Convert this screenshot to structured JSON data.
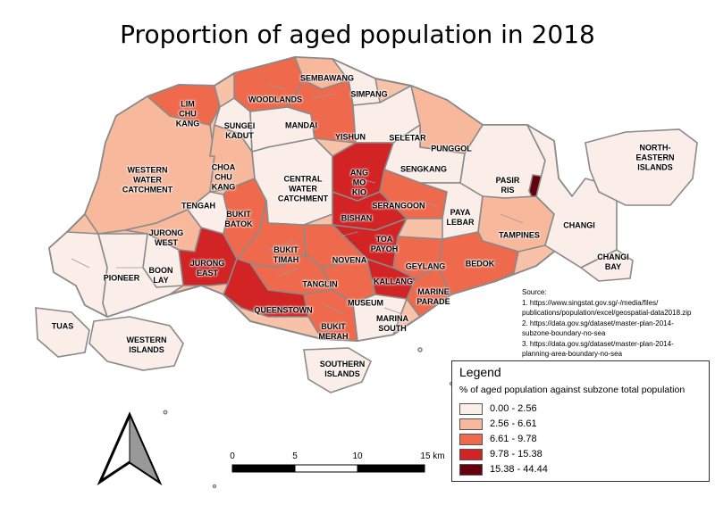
{
  "title": "Proportion of aged population in 2018",
  "map": {
    "labels": [
      {
        "id": "lim-chu-kang",
        "text": "LIM\nCHU\nKANG"
      },
      {
        "id": "sembawang",
        "text": "SEMBAWANG"
      },
      {
        "id": "woodlands",
        "text": "WOODLANDS"
      },
      {
        "id": "simpang",
        "text": "SIMPANG"
      },
      {
        "id": "sungei-kadut",
        "text": "SUNGEI\nKADUT"
      },
      {
        "id": "mandai",
        "text": "MANDAI"
      },
      {
        "id": "yishun",
        "text": "YISHUN"
      },
      {
        "id": "seletar",
        "text": "SELETAR"
      },
      {
        "id": "punggol",
        "text": "PUNGGOL"
      },
      {
        "id": "north-eastern-islands",
        "text": "NORTH-EASTERN\nISLANDS"
      },
      {
        "id": "western-water-catchment",
        "text": "WESTERN\nWATER\nCATCHMENT"
      },
      {
        "id": "choa-chu-kang",
        "text": "CHOA\nCHU\nKANG"
      },
      {
        "id": "central-water-catchment",
        "text": "CENTRAL\nWATER\nCATCHMENT"
      },
      {
        "id": "ang-mo-kio",
        "text": "ANG\nMO\nKIO"
      },
      {
        "id": "sengkang",
        "text": "SENGKANG"
      },
      {
        "id": "pasir-ris",
        "text": "PASIR\nRIS"
      },
      {
        "id": "tengah",
        "text": "TENGAH"
      },
      {
        "id": "bukit-batok",
        "text": "BUKIT\nBATOK"
      },
      {
        "id": "serangoon",
        "text": "SERANGOON"
      },
      {
        "id": "bishan",
        "text": "BISHAN"
      },
      {
        "id": "paya-lebar",
        "text": "PAYA\nLEBAR"
      },
      {
        "id": "changi",
        "text": "CHANGI"
      },
      {
        "id": "jurong-west",
        "text": "JURONG\nWEST"
      },
      {
        "id": "toa-payoh",
        "text": "TOA\nPAYOH"
      },
      {
        "id": "tampines",
        "text": "TAMPINES"
      },
      {
        "id": "changi-bay",
        "text": "CHANGI\nBAY"
      },
      {
        "id": "bukit-timah",
        "text": "BUKIT\nTIMAH"
      },
      {
        "id": "novena",
        "text": "NOVENA"
      },
      {
        "id": "geylang",
        "text": "GEYLANG"
      },
      {
        "id": "bedok",
        "text": "BEDOK"
      },
      {
        "id": "jurong-east",
        "text": "JURONG\nEAST"
      },
      {
        "id": "boon-lay",
        "text": "BOON\nLAY"
      },
      {
        "id": "pioneer",
        "text": "PIONEER"
      },
      {
        "id": "tanglin",
        "text": "TANGLIN"
      },
      {
        "id": "kallang",
        "text": "KALLANG"
      },
      {
        "id": "marine-parade",
        "text": "MARINE\nPARADE"
      },
      {
        "id": "queenstown",
        "text": "QUEENSTOWN"
      },
      {
        "id": "museum",
        "text": "MUSEUM"
      },
      {
        "id": "marina-south",
        "text": "MARINA\nSOUTH"
      },
      {
        "id": "tuas",
        "text": "TUAS"
      },
      {
        "id": "bukit-merah",
        "text": "BUKIT\nMERAH"
      },
      {
        "id": "western-islands",
        "text": "WESTERN\nISLANDS"
      },
      {
        "id": "southern-islands",
        "text": "SOUTHERN\nISLANDS"
      }
    ]
  },
  "source": {
    "heading": "Source:",
    "lines": [
      "1. https://www.singstat.gov.sg/-/media/files/",
      "publications/population/excel/geospatial-data2018.zip",
      "2. https://data.gov.sg/dataset/master-plan-2014-",
      "subzone-boundary-no-sea",
      "3. https://data.gov.sg/dataset/master-plan-2014-",
      "planning-area-boundary-no-sea"
    ]
  },
  "legend": {
    "title": "Legend",
    "description": "% of aged population against subzone total population",
    "classes": [
      {
        "label": "0.00 - 2.56",
        "color": "#fbeee9"
      },
      {
        "label": "2.56 - 6.61",
        "color": "#f8b89c"
      },
      {
        "label": "6.61 - 9.78",
        "color": "#ef6a4c"
      },
      {
        "label": "9.78 - 15.38",
        "color": "#d22424"
      },
      {
        "label": "15.38 - 44.44",
        "color": "#67000d"
      }
    ]
  },
  "scale_bar": {
    "ticks": [
      "0",
      "5",
      "10",
      "15 km"
    ]
  },
  "north_arrow": {
    "icon": "north-arrow-icon"
  }
}
